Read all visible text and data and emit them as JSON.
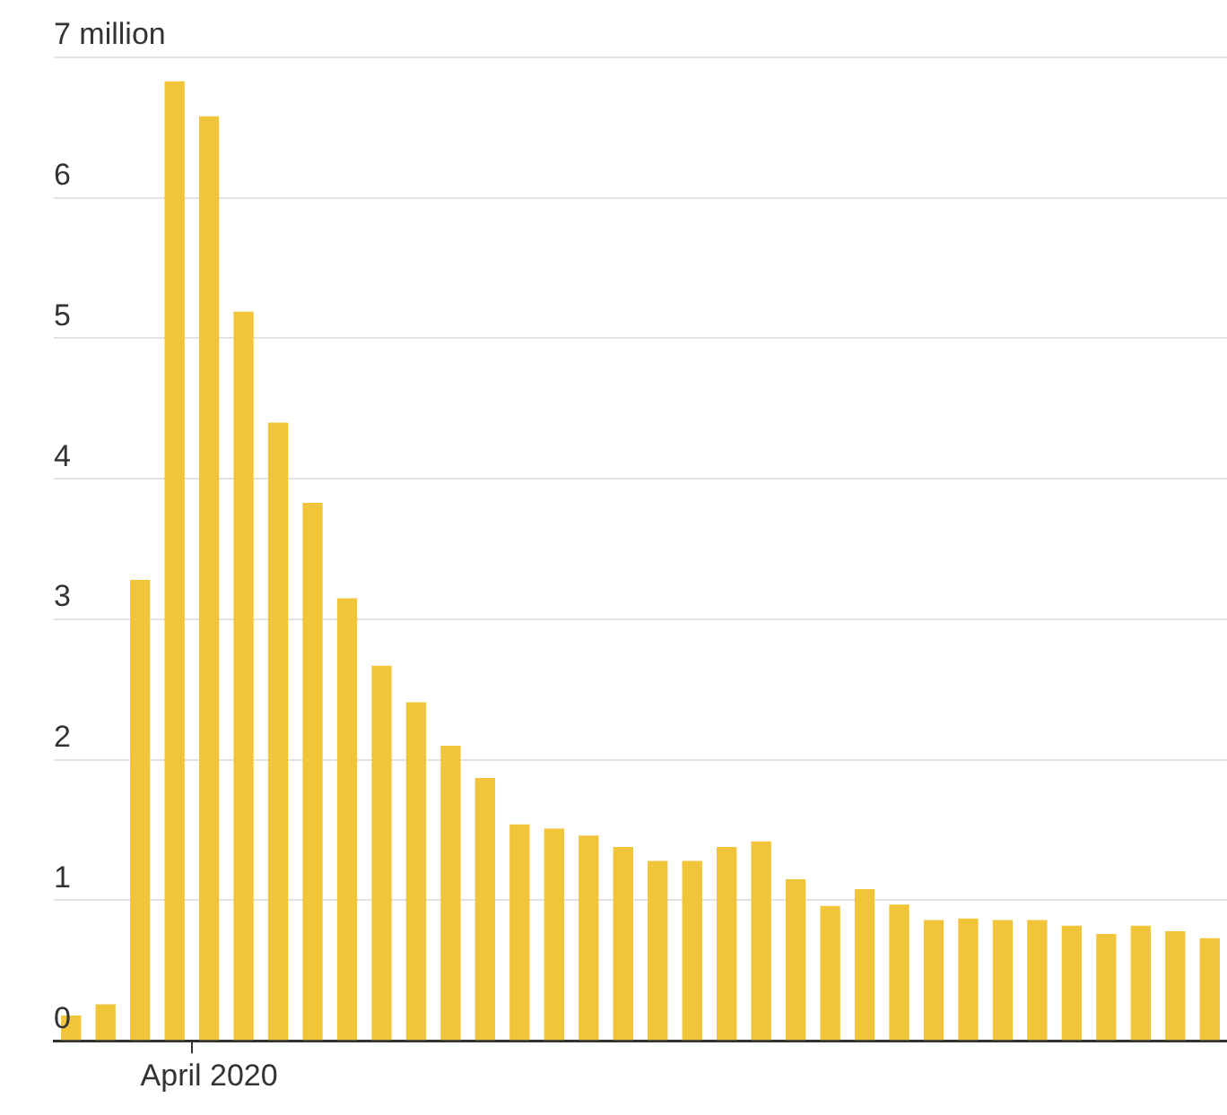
{
  "chart_data": {
    "type": "bar",
    "categories": [
      null,
      null,
      null,
      null,
      "April 2020",
      null,
      null,
      null,
      null,
      null,
      null,
      null,
      null,
      null,
      null,
      null,
      null,
      null,
      null,
      null,
      null,
      null,
      null,
      null,
      null,
      null,
      null,
      null,
      null,
      null,
      null,
      null,
      null,
      null
    ],
    "values": [
      0.18,
      0.26,
      3.28,
      6.83,
      6.58,
      5.19,
      4.4,
      3.83,
      3.15,
      2.67,
      2.41,
      2.1,
      1.87,
      1.54,
      1.51,
      1.46,
      1.38,
      1.28,
      1.28,
      1.38,
      1.42,
      1.15,
      0.96,
      1.08,
      0.97,
      0.86,
      0.87,
      0.86,
      0.86,
      0.82,
      0.76,
      0.82,
      0.78,
      0.73
    ],
    "color": "#f0c53a",
    "ylim": [
      0,
      7
    ],
    "yticks": [
      0,
      1,
      2,
      3,
      4,
      5,
      6,
      {
        "value": 7,
        "label": "7 million"
      }
    ],
    "grid": "y"
  }
}
